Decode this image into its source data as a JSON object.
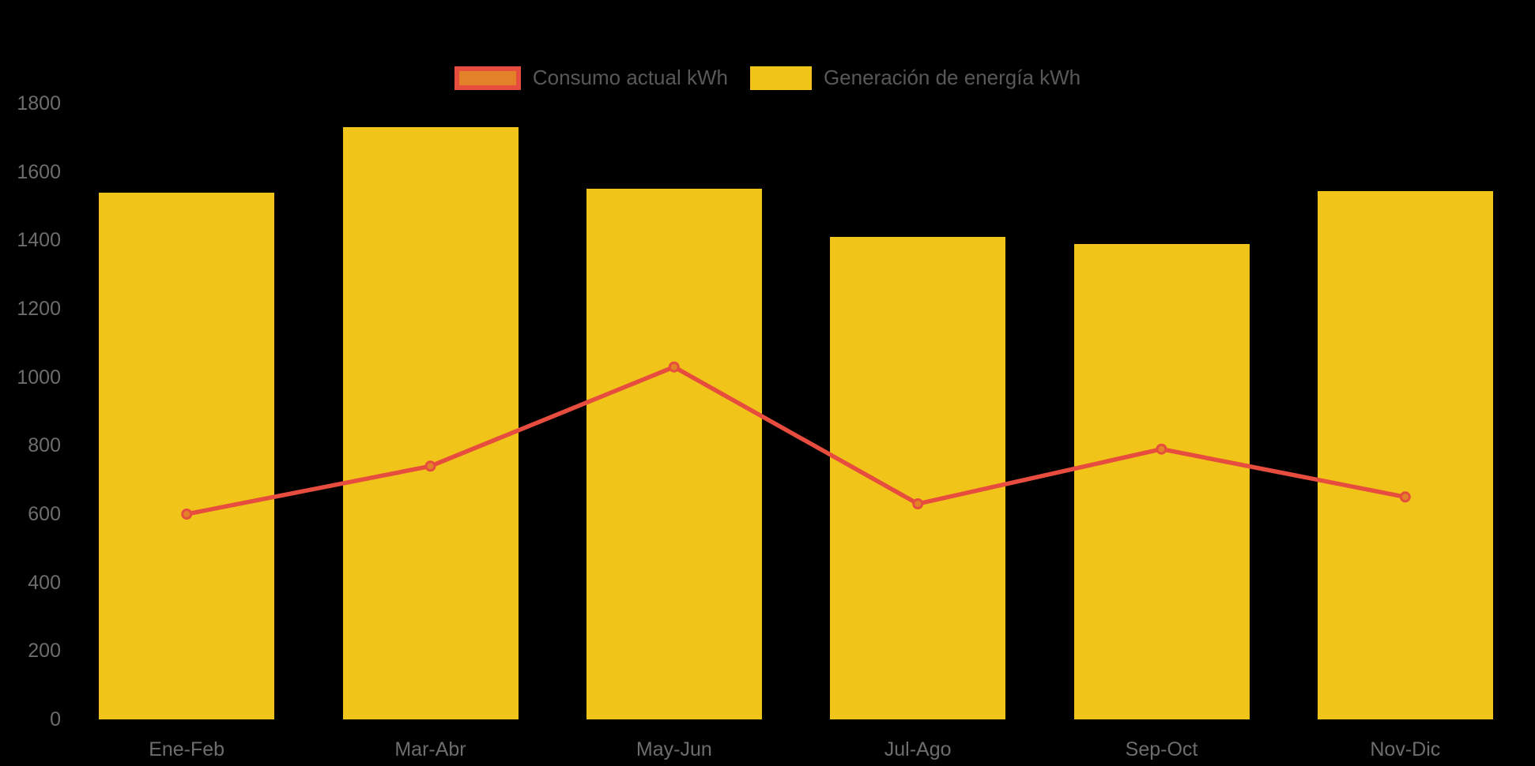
{
  "chart_data": {
    "type": "bar",
    "subtype": "bar-with-line-overlay",
    "title": "",
    "xlabel": "",
    "ylabel": "",
    "categories": [
      "Ene-Feb",
      "Mar-Abr",
      "May-Jun",
      "Jul-Ago",
      "Sep-Oct",
      "Nov-Dic"
    ],
    "series": [
      {
        "name": "Consumo actual kWh",
        "type": "line",
        "values": [
          600,
          740,
          1030,
          630,
          790,
          650
        ],
        "line_color": "#e64d3e",
        "marker_fill": "#e28127",
        "marker_border": "#e64d3e"
      },
      {
        "name": "Generación de energía kWh",
        "type": "bar",
        "values": [
          1540,
          1730,
          1550,
          1410,
          1390,
          1545
        ],
        "bar_color": "#f0c419"
      }
    ],
    "ylim": [
      0,
      1800
    ],
    "yticks": [
      1800,
      1600,
      1400,
      1200,
      1000,
      800,
      600,
      400,
      200,
      0
    ],
    "grid": false,
    "legend_position": "top",
    "background_color": "#000000",
    "axis_text_color": "#6d6d6d",
    "legend_text_color": "#58585a"
  },
  "legend": {
    "items": [
      {
        "label": "Consumo actual kWh"
      },
      {
        "label": "Generación de energía kWh"
      }
    ]
  }
}
